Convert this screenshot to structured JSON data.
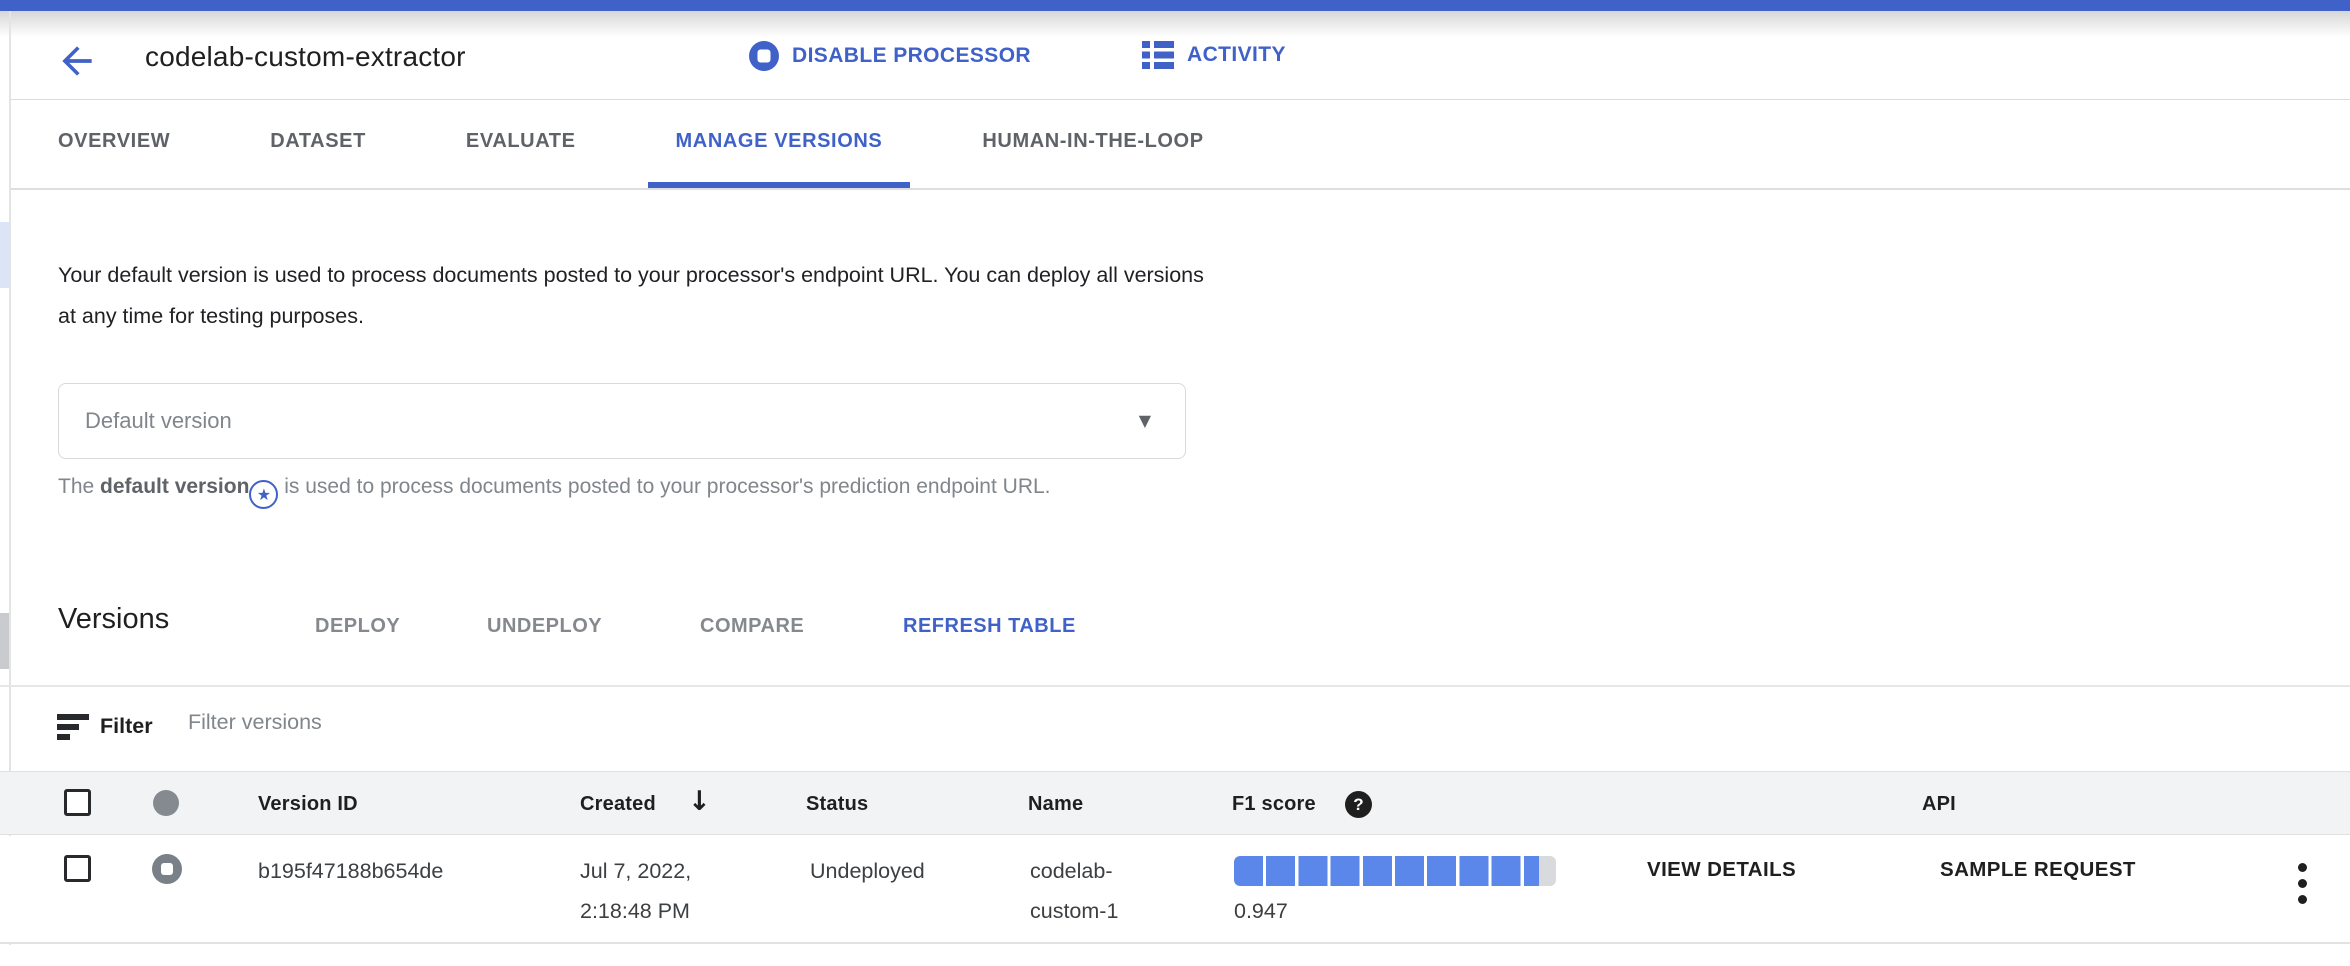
{
  "colors": {
    "accent": "#4062c8",
    "progress_fill": "#5b86ea",
    "table_header_bg": "#f1f3f4"
  },
  "header": {
    "title": "codelab-custom-extractor",
    "actions": {
      "disable": "DISABLE PROCESSOR",
      "activity": "ACTIVITY"
    }
  },
  "tabs": [
    {
      "label": "OVERVIEW",
      "active": false
    },
    {
      "label": "DATASET",
      "active": false
    },
    {
      "label": "EVALUATE",
      "active": false
    },
    {
      "label": "MANAGE VERSIONS",
      "active": true
    },
    {
      "label": "HUMAN-IN-THE-LOOP",
      "active": false
    }
  ],
  "intro": {
    "text": "Your default version is used to process documents posted to your processor's endpoint URL. You can deploy all versions at any time for testing purposes."
  },
  "default_version": {
    "value": "Default version",
    "help_pre": "The ",
    "help_bold": "default version",
    "help_post": " is used to process documents posted to your processor's prediction endpoint URL."
  },
  "versions": {
    "heading": "Versions",
    "deploy": "DEPLOY",
    "undeploy": "UNDEPLOY",
    "compare": "COMPARE",
    "refresh": "REFRESH TABLE"
  },
  "filter": {
    "label": "Filter",
    "placeholder": "Filter versions"
  },
  "table": {
    "headers": {
      "version_id": "Version ID",
      "created": "Created",
      "status": "Status",
      "name": "Name",
      "f1": "F1 score",
      "api": "API"
    },
    "rows": [
      {
        "version_id": "b195f47188b654de",
        "created": "Jul 7, 2022, 2:18:48 PM",
        "status": "Undeployed",
        "name": "codelab-custom-1",
        "f1_score": 0.947,
        "f1_label": "0.947",
        "view_details": "VIEW DETAILS",
        "sample_request": "SAMPLE REQUEST"
      }
    ]
  }
}
